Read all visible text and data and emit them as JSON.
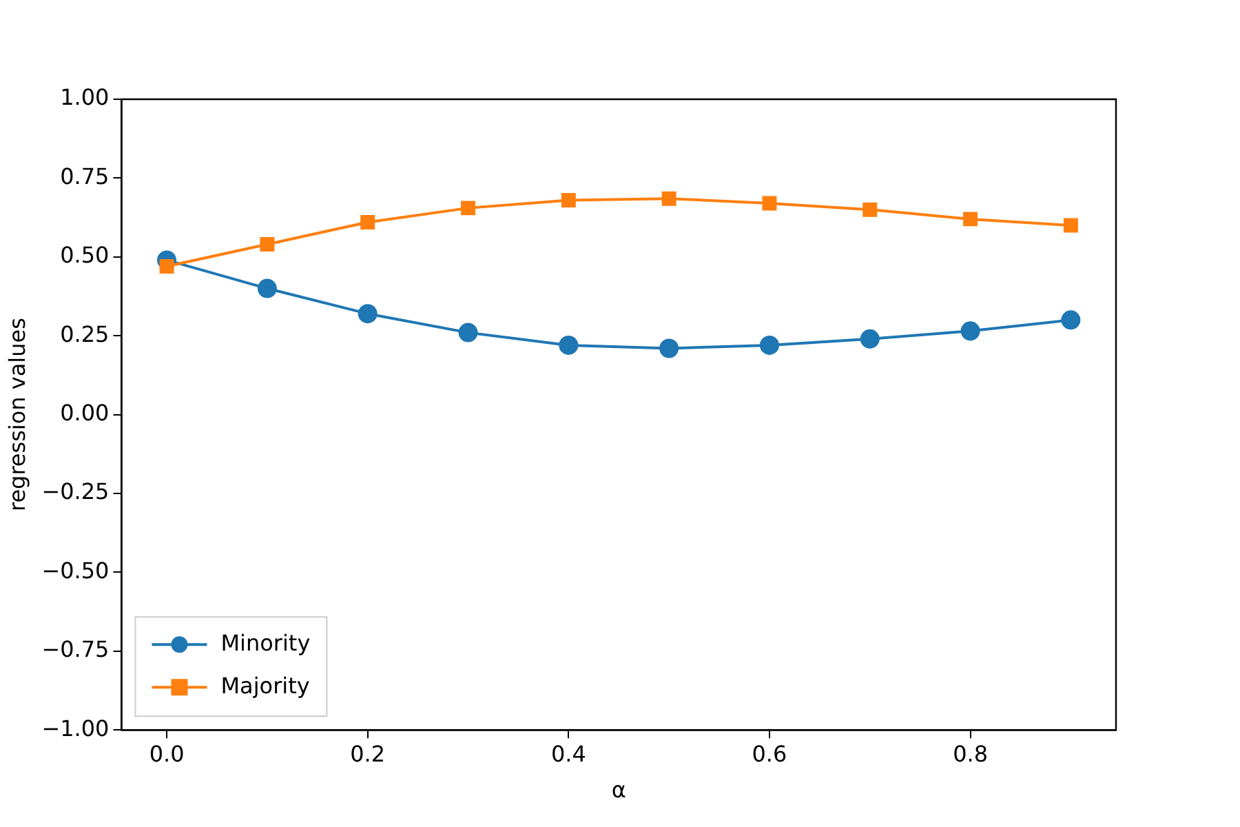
{
  "chart_data": {
    "type": "line",
    "xlabel": "α",
    "ylabel": "regression values",
    "x": [
      0,
      0.1,
      0.2,
      0.3,
      0.4,
      0.5,
      0.6,
      0.7,
      0.8,
      0.9
    ],
    "series": [
      {
        "name": "Minority",
        "color": "#1f77b4",
        "marker": "circle",
        "values": [
          0.49,
          0.4,
          0.32,
          0.26,
          0.22,
          0.21,
          0.22,
          0.24,
          0.265,
          0.3
        ]
      },
      {
        "name": "Majority",
        "color": "#ff7f0e",
        "marker": "square",
        "values": [
          0.47,
          0.54,
          0.61,
          0.655,
          0.68,
          0.685,
          0.67,
          0.65,
          0.62,
          0.6
        ]
      }
    ],
    "xlim": [
      -0.045,
      0.945
    ],
    "xticks": [
      {
        "value": 0,
        "label": "0.0"
      },
      {
        "value": 0.2,
        "label": "0.2"
      },
      {
        "value": 0.4,
        "label": "0.4"
      },
      {
        "value": 0.6,
        "label": "0.6"
      },
      {
        "value": 0.8,
        "label": "0.8"
      }
    ],
    "ylim": [
      -1,
      1
    ],
    "yticks": [
      {
        "value": -1,
        "label": "−1.00"
      },
      {
        "value": -0.75,
        "label": "−0.75"
      },
      {
        "value": -0.5,
        "label": "−0.50"
      },
      {
        "value": -0.25,
        "label": "−0.25"
      },
      {
        "value": 0,
        "label": "0.00"
      },
      {
        "value": 0.25,
        "label": "0.25"
      },
      {
        "value": 0.5,
        "label": "0.50"
      },
      {
        "value": 0.75,
        "label": "0.75"
      },
      {
        "value": 1,
        "label": "1.00"
      }
    ],
    "legend": "bottom left",
    "grid": false,
    "line_style": "solid"
  }
}
